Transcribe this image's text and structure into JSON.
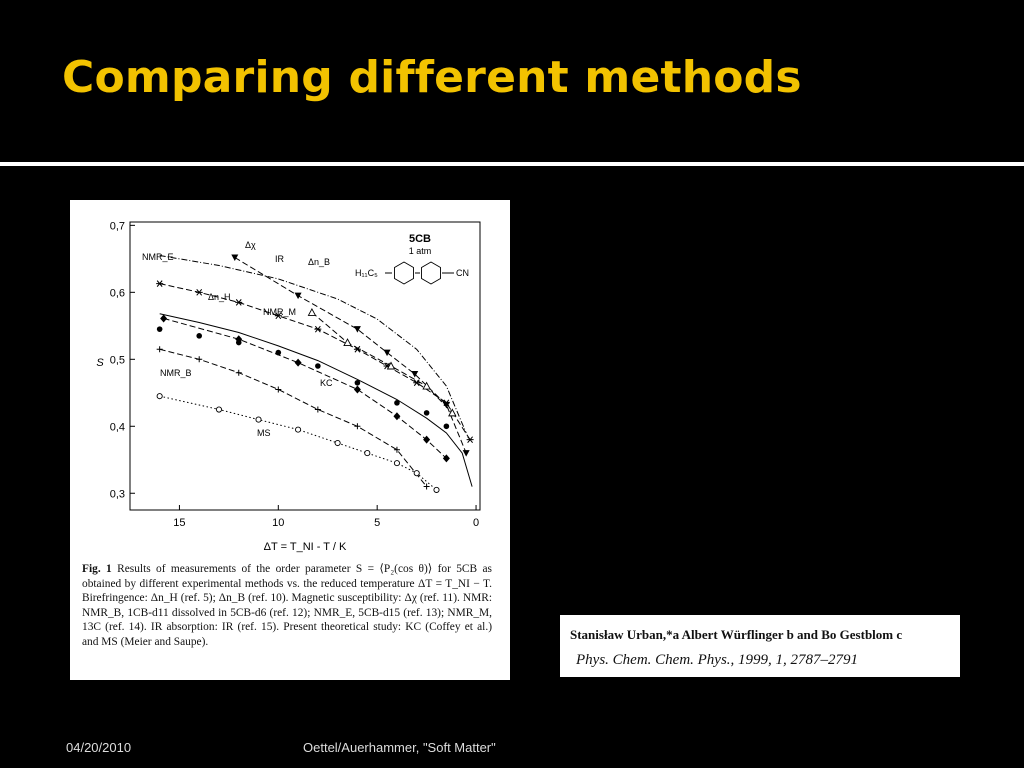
{
  "slide": {
    "title": "Comparing different methods",
    "footer_date": "04/20/2010",
    "footer_center": "Oettel/Auerhammer, \"Soft Matter\""
  },
  "caption": {
    "fig_label": "Fig. 1",
    "text": "Results of measurements of the order parameter S = ⟨P₂(cos θ)⟩ for 5CB as obtained by different experimental methods vs. the reduced temperature ΔT = T_NI − T. Birefringence: Δn_H (ref. 5); Δn_B (ref. 10). Magnetic susceptibility: Δχ (ref. 11). NMR: NMR_B, 1CB-d11 dissolved in 5CB-d6 (ref. 12); NMR_E, 5CB-d15 (ref. 13); NMR_M, 13C (ref. 14). IR absorption: IR (ref. 15). Present theoretical study: KC (Coffey et al.) and MS (Meier and Saupe)."
  },
  "reference": {
    "authors": "Stanisław Urban,*a Albert Würflinger b and Bo Gestblom c",
    "journal": "Phys. Chem. Chem. Phys., 1999, 1, 2787–2791"
  },
  "inset": {
    "compound": "5CB",
    "pressure": "1 atm",
    "formula_left": "H₁₁C₅",
    "formula_right": "CN"
  },
  "chart_data": {
    "type": "scatter",
    "xlabel": "ΔT = T_NI - T / K",
    "ylabel": "S",
    "xlim": [
      17.5,
      -0.2
    ],
    "ylim": [
      0.275,
      0.705
    ],
    "xticks": [
      15,
      10,
      5,
      0
    ],
    "yticks": [
      0.3,
      0.4,
      0.5,
      0.6,
      0.7
    ],
    "ytick_labels": [
      "0,3",
      "0,4",
      "0,5",
      "0,6",
      "0,7"
    ],
    "series": [
      {
        "name": "Δχ",
        "marker": "line",
        "style": "dashdot",
        "x": [
          16,
          13,
          10,
          7,
          5,
          3,
          1.5,
          0.5
        ],
        "y": [
          0.655,
          0.64,
          0.62,
          0.59,
          0.56,
          0.515,
          0.46,
          0.39
        ]
      },
      {
        "name": "NMR_E",
        "marker": "asterisk",
        "style": "dashed",
        "x": [
          16,
          14,
          12,
          10,
          8,
          6,
          4.5,
          3,
          1.5,
          0.3
        ],
        "y": [
          0.613,
          0.6,
          0.585,
          0.565,
          0.545,
          0.515,
          0.49,
          0.465,
          0.435,
          0.38
        ]
      },
      {
        "name": "IR",
        "marker": "triangle-down-filled",
        "style": "dashed",
        "x": [
          12.2,
          9,
          6,
          4.5,
          3.1,
          1.5,
          0.5
        ],
        "y": [
          0.652,
          0.595,
          0.545,
          0.51,
          0.478,
          0.432,
          0.36
        ]
      },
      {
        "name": "Δn_B",
        "marker": "triangle-open",
        "style": "dashed",
        "x": [
          8.3,
          6.5,
          4.3,
          2.5,
          1.2
        ],
        "y": [
          0.57,
          0.525,
          0.49,
          0.46,
          0.42
        ]
      },
      {
        "name": "Δn_H",
        "marker": "diamond-filled",
        "style": "dashed",
        "x": [
          15.8,
          12,
          9,
          6,
          4,
          2.5,
          1.5
        ],
        "y": [
          0.561,
          0.53,
          0.495,
          0.455,
          0.415,
          0.38,
          0.352
        ]
      },
      {
        "name": "NMR_M",
        "marker": "circle-filled",
        "style": "none",
        "x": [
          16,
          14,
          12,
          10,
          8,
          6,
          4,
          2.5,
          1.5
        ],
        "y": [
          0.545,
          0.535,
          0.525,
          0.51,
          0.49,
          0.465,
          0.435,
          0.42,
          0.4
        ]
      },
      {
        "name": "KC",
        "marker": "line",
        "style": "solid",
        "x": [
          16,
          14,
          12,
          10,
          8,
          6,
          4,
          2.5,
          1.5,
          0.7,
          0.2
        ],
        "y": [
          0.568,
          0.555,
          0.54,
          0.52,
          0.498,
          0.47,
          0.44,
          0.412,
          0.39,
          0.36,
          0.31
        ]
      },
      {
        "name": "NMR_B",
        "marker": "plus",
        "style": "dashed",
        "x": [
          16,
          14,
          12,
          10,
          8,
          6,
          4,
          2.5
        ],
        "y": [
          0.515,
          0.5,
          0.48,
          0.455,
          0.425,
          0.4,
          0.365,
          0.31
        ]
      },
      {
        "name": "MS",
        "marker": "circle-open",
        "style": "dotted",
        "x": [
          16,
          13,
          11,
          9,
          7,
          5.5,
          4,
          3,
          2
        ],
        "y": [
          0.445,
          0.425,
          0.41,
          0.395,
          0.375,
          0.36,
          0.345,
          0.33,
          0.305
        ]
      }
    ]
  }
}
